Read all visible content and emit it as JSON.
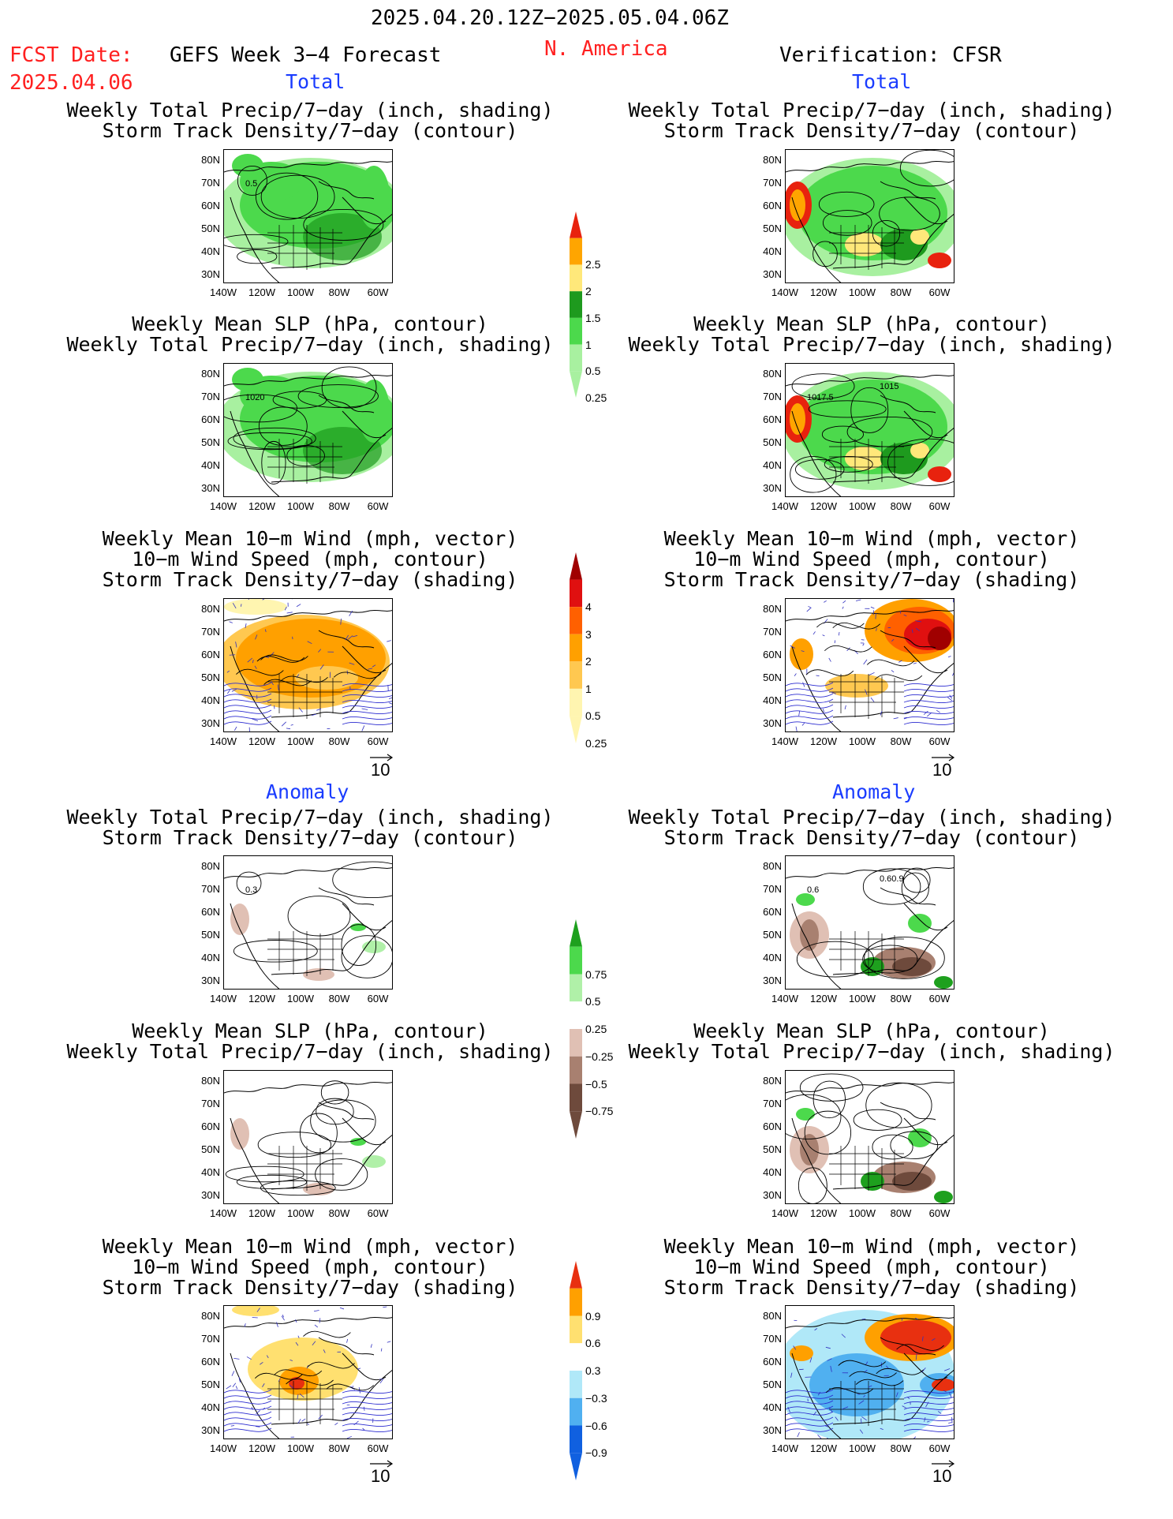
{
  "header": {
    "period": "2025.04.20.12Z−2025.05.04.06Z",
    "fcst_label": "FCST Date:",
    "fcst_date": "2025.04.06",
    "model": "GEFS Week 3−4 Forecast",
    "region": "N. America",
    "verification": "Verification: CFSR"
  },
  "sections": {
    "total": "Total",
    "anomaly": "Anomaly"
  },
  "panel_titles": {
    "precip_track": [
      "Weekly Total Precip/7−day (inch, shading)",
      "Storm Track Density/7−day (contour)"
    ],
    "slp_precip": [
      "Weekly Mean SLP (hPa, contour)",
      "Weekly Total Precip/7−day (inch, shading)"
    ],
    "wind": [
      "Weekly Mean 10−m Wind (mph, vector)",
      "10−m Wind Speed (mph, contour)",
      "Storm Track Density/7−day (shading)"
    ]
  },
  "lat_labels": [
    "80N",
    "70N",
    "60N",
    "50N",
    "40N",
    "30N"
  ],
  "lon_labels": [
    "140W",
    "120W",
    "100W",
    "80W",
    "60W"
  ],
  "vector_ref": "10",
  "contour_labels": {
    "fc_precip_total": "0.5",
    "fc_slp_total": "1020",
    "ob_slp_total_a": "1017.5",
    "ob_slp_total_b": "1015",
    "fc_precip_anom": "0.3",
    "ob_precip_anom": "0.6",
    "ob_precip_anom_b": "0.60.9"
  },
  "colorbars": {
    "precip_total": {
      "labels": [
        "2.5",
        "2",
        "1.5",
        "1",
        "0.5",
        "0.25"
      ],
      "colors": [
        "#e8220e",
        "#ffa500",
        "#ffe87a",
        "#1e9a1e",
        "#4cd94c",
        "#a8f0a0"
      ]
    },
    "track_total": {
      "labels": [
        "4",
        "3",
        "2",
        "1",
        "0.5",
        "0.25"
      ],
      "colors": [
        "#a00000",
        "#e01010",
        "#ff6000",
        "#ffa000",
        "#ffc850",
        "#fff5b0"
      ]
    },
    "precip_anom": {
      "labels": [
        "0.75",
        "0.5",
        "0.25",
        "−0.25",
        "−0.5",
        "−0.75"
      ],
      "colors": [
        "#1ea01e",
        "#4cd94c",
        "#b0f0a8",
        "#ffffff",
        "#e0c0b4",
        "#a88070",
        "#6e4a3c"
      ]
    },
    "track_anom": {
      "labels": [
        "0.9",
        "0.6",
        "0.3",
        "−0.3",
        "−0.6",
        "−0.9"
      ],
      "colors": [
        "#e83010",
        "#ffa000",
        "#ffe070",
        "#ffffff",
        "#b0e8f8",
        "#50b0f0",
        "#1060e0"
      ]
    }
  }
}
